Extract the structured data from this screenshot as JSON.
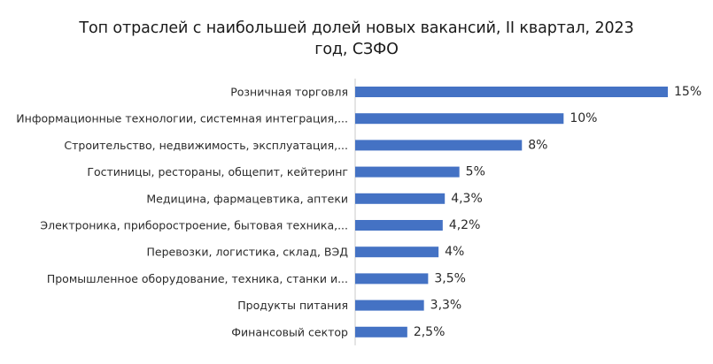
{
  "chart_data": {
    "type": "bar",
    "orientation": "horizontal",
    "title_lines": [
      "Топ отраслей с наибольшей долей новых вакансий, II квартал, 2023",
      "год, СЗФО"
    ],
    "categories": [
      "Розничная торговля",
      "Информационные технологии, системная интеграция,...",
      "Строительство, недвижимость, эксплуатация,...",
      "Гостиницы, рестораны, общепит, кейтеринг",
      "Медицина, фармацевтика, аптеки",
      "Электроника, приборостроение, бытовая техника,...",
      "Перевозки, логистика, склад, ВЭД",
      "Промышленное оборудование, техника, станки и...",
      "Продукты питания",
      "Финансовый сектор"
    ],
    "values": [
      15,
      10,
      8,
      5,
      4.3,
      4.2,
      4,
      3.5,
      3.3,
      2.5
    ],
    "value_labels": [
      "15%",
      "10%",
      "8%",
      "5%",
      "4,3%",
      "4,2%",
      "4%",
      "3,5%",
      "3,3%",
      "2,5%"
    ],
    "xlim": [
      0,
      15
    ],
    "grid": false,
    "legend": "none",
    "bar_color": "#4472c4",
    "axis_color": "#c8c8c8"
  }
}
